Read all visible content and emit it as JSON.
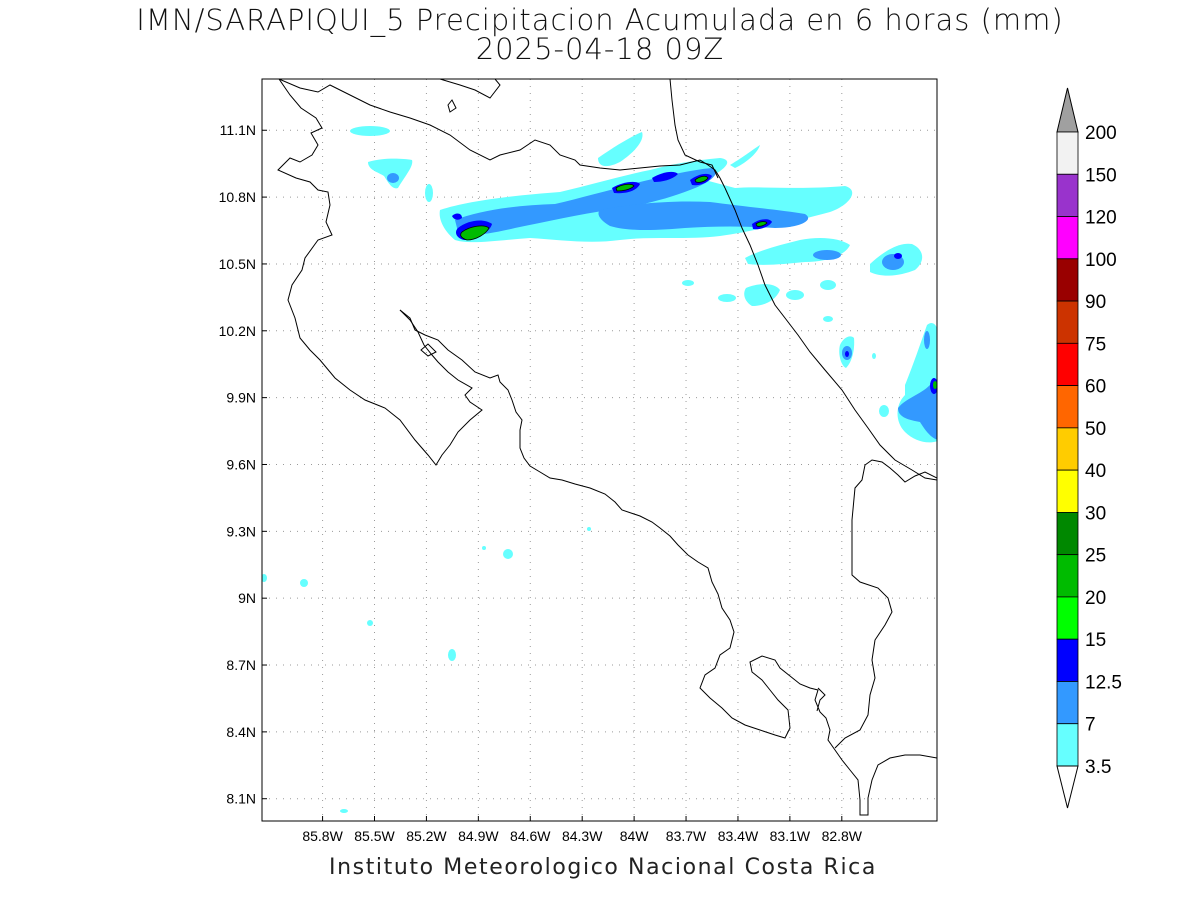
{
  "title": {
    "line1": "IMN/SARAPIQUI_5 Precipitacion Acumulada en 6 horas (mm)",
    "line2": "2025-04-18 09Z"
  },
  "footer": "Instituto Meteorologico Nacional Costa Rica",
  "map": {
    "lon_range": [
      -86.15,
      -82.25
    ],
    "lat_range": [
      8.0,
      11.33
    ],
    "x_ticks": [
      {
        "value": -85.8,
        "label": "85.8W"
      },
      {
        "value": -85.5,
        "label": "85.5W"
      },
      {
        "value": -85.2,
        "label": "85.2W"
      },
      {
        "value": -84.9,
        "label": "84.9W"
      },
      {
        "value": -84.6,
        "label": "84.6W"
      },
      {
        "value": -84.3,
        "label": "84.3W"
      },
      {
        "value": -84.0,
        "label": "84W"
      },
      {
        "value": -83.7,
        "label": "83.7W"
      },
      {
        "value": -83.4,
        "label": "83.4W"
      },
      {
        "value": -83.1,
        "label": "83.1W"
      },
      {
        "value": -82.8,
        "label": "82.8W"
      }
    ],
    "y_ticks": [
      {
        "value": 11.1,
        "label": "11.1N"
      },
      {
        "value": 10.8,
        "label": "10.8N"
      },
      {
        "value": 10.5,
        "label": "10.5N"
      },
      {
        "value": 10.2,
        "label": "10.2N"
      },
      {
        "value": 9.9,
        "label": "9.9N"
      },
      {
        "value": 9.6,
        "label": "9.6N"
      },
      {
        "value": 9.3,
        "label": "9.3N"
      },
      {
        "value": 9.0,
        "label": "9N"
      },
      {
        "value": 8.7,
        "label": "8.7N"
      },
      {
        "value": 8.4,
        "label": "8.4N"
      },
      {
        "value": 8.1,
        "label": "8.1N"
      }
    ],
    "grid": "dotted"
  },
  "colorbar": {
    "levels": [
      {
        "label": "200",
        "color": "#a0a0a0"
      },
      {
        "label": "150",
        "color": "#f2f2f2"
      },
      {
        "label": "120",
        "color": "#9933cc"
      },
      {
        "label": "100",
        "color": "#ff00ff"
      },
      {
        "label": "90",
        "color": "#990000"
      },
      {
        "label": "75",
        "color": "#cc3300"
      },
      {
        "label": "60",
        "color": "#ff0000"
      },
      {
        "label": "50",
        "color": "#ff6600"
      },
      {
        "label": "40",
        "color": "#ffcc00"
      },
      {
        "label": "30",
        "color": "#ffff00"
      },
      {
        "label": "25",
        "color": "#008800"
      },
      {
        "label": "20",
        "color": "#00bb00"
      },
      {
        "label": "15",
        "color": "#00ff00"
      },
      {
        "label": "12.5",
        "color": "#0000ff"
      },
      {
        "label": "7",
        "color": "#3399ff"
      },
      {
        "label": "3.5",
        "color": "#66ffff"
      }
    ]
  },
  "colors": {
    "light": "#66ffff",
    "mid": "#3399ff",
    "dark": "#0000ff",
    "green": "#00bb00"
  }
}
